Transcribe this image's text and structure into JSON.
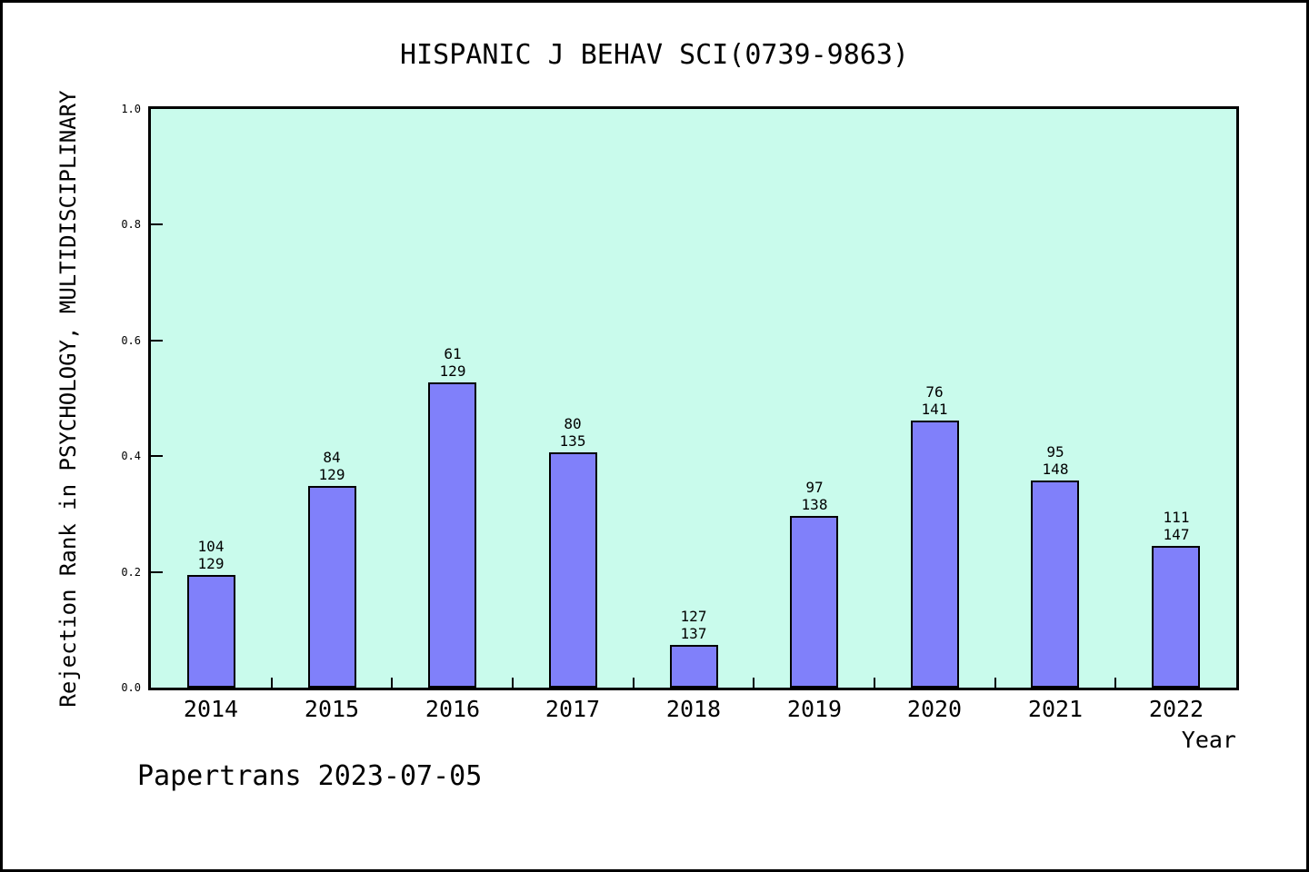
{
  "figure": {
    "footer": "Papertrans 2023-07-05"
  },
  "chart_data": {
    "type": "bar",
    "title": "HISPANIC J BEHAV SCI(0739-9863)",
    "xlabel": "Year",
    "ylabel": "Rejection Rank in PSYCHOLOGY, MULTIDISCIPLINARY",
    "ylim": [
      0.0,
      1.0
    ],
    "yticks": [
      0.0,
      0.2,
      0.4,
      0.6,
      0.8,
      1.0
    ],
    "grid": false,
    "legend_position": "none",
    "categories": [
      "2014",
      "2015",
      "2016",
      "2017",
      "2018",
      "2019",
      "2020",
      "2021",
      "2022"
    ],
    "values": [
      0.194,
      0.349,
      0.527,
      0.407,
      0.073,
      0.297,
      0.461,
      0.358,
      0.245
    ],
    "bar_annotations": [
      {
        "rank": "104",
        "total": "129"
      },
      {
        "rank": "84",
        "total": "129"
      },
      {
        "rank": "61",
        "total": "129"
      },
      {
        "rank": "80",
        "total": "135"
      },
      {
        "rank": "127",
        "total": "137"
      },
      {
        "rank": "97",
        "total": "138"
      },
      {
        "rank": "76",
        "total": "141"
      },
      {
        "rank": "95",
        "total": "148"
      },
      {
        "rank": "111",
        "total": "147"
      }
    ],
    "colors": {
      "bar_fill": "#8080fa",
      "bar_border": "#000000",
      "plot_bg": "#c9fbec",
      "axis": "#000000",
      "text": "#000000"
    }
  }
}
